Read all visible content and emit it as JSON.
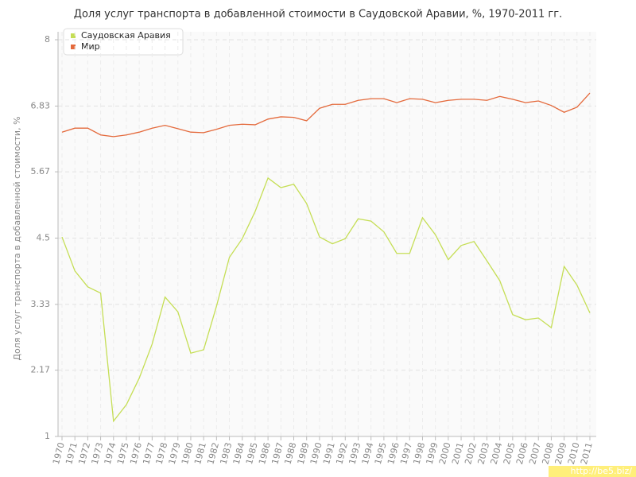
{
  "chart_data": {
    "type": "line",
    "title": "Доля услуг транспорта в добавленной стоимости в Саудовской Аравии, %, 1970-2011 гг.",
    "y_label": "Доля услуг транспорта в добавленной стоимости, %",
    "categories": [
      "1970",
      "1971",
      "1972",
      "1973",
      "1974",
      "1975",
      "1976",
      "1977",
      "1978",
      "1979",
      "1980",
      "1981",
      "1982",
      "1983",
      "1984",
      "1985",
      "1986",
      "1987",
      "1988",
      "1989",
      "1990",
      "1991",
      "1992",
      "1993",
      "1994",
      "1995",
      "1996",
      "1997",
      "1998",
      "1999",
      "2000",
      "2001",
      "2002",
      "2003",
      "2004",
      "2005",
      "2006",
      "2007",
      "2008",
      "2009",
      "2010",
      "2011"
    ],
    "series": [
      {
        "name": "Саудовская Аравия",
        "color": "#c5de55",
        "values": [
          4.52,
          3.92,
          3.64,
          3.53,
          1.27,
          1.56,
          2.03,
          2.63,
          3.46,
          3.2,
          2.47,
          2.53,
          3.3,
          4.16,
          4.49,
          4.97,
          5.56,
          5.39,
          5.45,
          5.11,
          4.52,
          4.4,
          4.49,
          4.84,
          4.8,
          4.61,
          4.23,
          4.23,
          4.86,
          4.56,
          4.12,
          4.37,
          4.44,
          4.1,
          3.75,
          3.15,
          3.06,
          3.09,
          2.92,
          4.0,
          3.67,
          3.18
        ]
      },
      {
        "name": "Мир",
        "color": "#e4693b",
        "values": [
          6.37,
          6.44,
          6.44,
          6.32,
          6.29,
          6.32,
          6.37,
          6.44,
          6.49,
          6.43,
          6.37,
          6.36,
          6.42,
          6.49,
          6.51,
          6.5,
          6.6,
          6.64,
          6.63,
          6.57,
          6.79,
          6.86,
          6.86,
          6.93,
          6.96,
          6.96,
          6.89,
          6.96,
          6.95,
          6.89,
          6.93,
          6.95,
          6.95,
          6.93,
          7.0,
          6.95,
          6.89,
          6.92,
          6.84,
          6.72,
          6.81,
          7.06
        ]
      }
    ],
    "ylim": [
      1,
      8
    ],
    "yticks": [
      1,
      2.17,
      3.33,
      4.5,
      5.67,
      6.83,
      8
    ],
    "grid": true,
    "legend": "top-left"
  },
  "watermark": "http://be5.biz/"
}
